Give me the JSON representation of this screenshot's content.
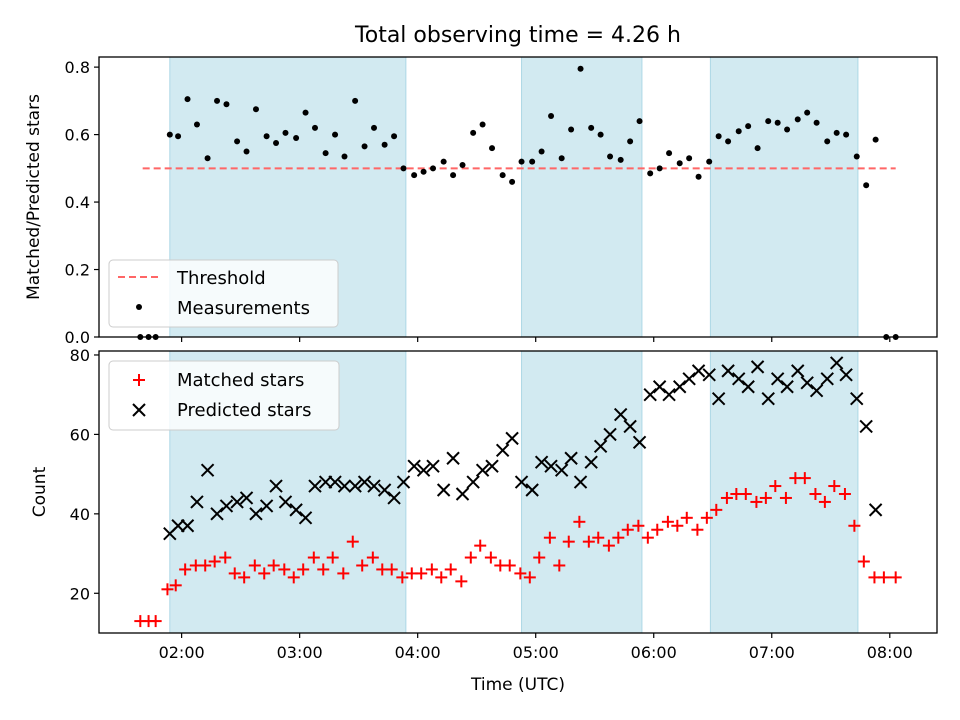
{
  "figure": {
    "title": "Total observing time = 4.26 h",
    "xlabel": "Time (UTC)",
    "x_ticks": [
      "02:00",
      "03:00",
      "04:00",
      "05:00",
      "06:00",
      "07:00",
      "08:00"
    ],
    "x_tick_hours": [
      2,
      3,
      4,
      5,
      6,
      7,
      8
    ],
    "xlim_hours": [
      1.3,
      8.4
    ],
    "observing_windows_hours": [
      [
        1.9,
        3.9
      ],
      [
        4.88,
        5.9
      ],
      [
        6.48,
        7.73
      ]
    ],
    "window_color": "#add8e6"
  },
  "chart_data": [
    {
      "type": "scatter",
      "ylabel": "Matched/Predicted stars",
      "ylim": [
        0,
        0.83
      ],
      "y_ticks": [
        "0.0",
        "0.2",
        "0.4",
        "0.6",
        "0.8"
      ],
      "y_tick_values": [
        0,
        0.2,
        0.4,
        0.6,
        0.8
      ],
      "legend_position": "lower-left",
      "threshold": {
        "name": "Threshold",
        "value": 0.5,
        "x_range_hours": [
          1.67,
          8.05
        ],
        "color": "#ff6666",
        "style": "dashed"
      },
      "series": [
        {
          "name": "Measurements",
          "color": "#000000",
          "marker": "dot",
          "x_hours": [
            1.65,
            1.72,
            1.78,
            1.9,
            1.97,
            2.05,
            2.13,
            2.22,
            2.3,
            2.38,
            2.47,
            2.55,
            2.63,
            2.72,
            2.8,
            2.88,
            2.97,
            3.05,
            3.13,
            3.22,
            3.3,
            3.38,
            3.47,
            3.55,
            3.63,
            3.72,
            3.8,
            3.88,
            3.97,
            4.05,
            4.13,
            4.22,
            4.3,
            4.38,
            4.47,
            4.55,
            4.63,
            4.72,
            4.8,
            4.88,
            4.97,
            5.05,
            5.13,
            5.22,
            5.3,
            5.38,
            5.47,
            5.55,
            5.63,
            5.72,
            5.8,
            5.88,
            5.97,
            6.05,
            6.13,
            6.22,
            6.3,
            6.38,
            6.47,
            6.55,
            6.63,
            6.72,
            6.8,
            6.88,
            6.97,
            7.05,
            7.13,
            7.22,
            7.3,
            7.38,
            7.47,
            7.55,
            7.63,
            7.72,
            7.8,
            7.88,
            7.97,
            8.05
          ],
          "values": [
            0.0,
            0.0,
            0.0,
            0.6,
            0.595,
            0.705,
            0.63,
            0.53,
            0.7,
            0.69,
            0.58,
            0.55,
            0.675,
            0.595,
            0.575,
            0.605,
            0.59,
            0.665,
            0.62,
            0.545,
            0.6,
            0.535,
            0.7,
            0.565,
            0.62,
            0.57,
            0.595,
            0.5,
            0.48,
            0.49,
            0.5,
            0.52,
            0.48,
            0.51,
            0.605,
            0.63,
            0.56,
            0.48,
            0.46,
            0.52,
            0.52,
            0.55,
            0.655,
            0.53,
            0.615,
            0.795,
            0.62,
            0.6,
            0.535,
            0.525,
            0.58,
            0.64,
            0.485,
            0.5,
            0.545,
            0.515,
            0.53,
            0.475,
            0.52,
            0.595,
            0.58,
            0.61,
            0.625,
            0.56,
            0.64,
            0.635,
            0.615,
            0.645,
            0.665,
            0.635,
            0.58,
            0.605,
            0.6,
            0.535,
            0.45,
            0.585,
            0.0,
            0.0
          ]
        }
      ]
    },
    {
      "type": "scatter",
      "ylabel": "Count",
      "ylim": [
        10,
        81
      ],
      "y_ticks": [
        "20",
        "40",
        "60",
        "80"
      ],
      "y_tick_values": [
        20,
        40,
        60,
        80
      ],
      "legend_position": "upper-left",
      "series": [
        {
          "name": "Matched stars",
          "color": "#ff0000",
          "marker": "plus",
          "x_hours": [
            1.65,
            1.72,
            1.78,
            1.88,
            1.95,
            2.03,
            2.12,
            2.2,
            2.28,
            2.37,
            2.45,
            2.53,
            2.62,
            2.7,
            2.78,
            2.87,
            2.95,
            3.03,
            3.12,
            3.2,
            3.28,
            3.37,
            3.45,
            3.53,
            3.62,
            3.7,
            3.78,
            3.87,
            3.95,
            4.03,
            4.12,
            4.2,
            4.28,
            4.37,
            4.45,
            4.53,
            4.62,
            4.7,
            4.78,
            4.87,
            4.95,
            5.03,
            5.12,
            5.2,
            5.28,
            5.37,
            5.45,
            5.53,
            5.62,
            5.7,
            5.78,
            5.87,
            5.95,
            6.03,
            6.12,
            6.2,
            6.28,
            6.37,
            6.45,
            6.53,
            6.62,
            6.7,
            6.78,
            6.87,
            6.95,
            7.03,
            7.12,
            7.2,
            7.28,
            7.37,
            7.45,
            7.53,
            7.62,
            7.7,
            7.78,
            7.87,
            7.95,
            8.05
          ],
          "values": [
            13,
            13,
            13,
            21,
            22,
            26,
            27,
            27,
            28,
            29,
            25,
            24,
            27,
            25,
            27,
            26,
            24,
            26,
            29,
            26,
            29,
            25,
            33,
            27,
            29,
            26,
            26,
            24,
            25,
            25,
            26,
            24,
            26,
            23,
            29,
            32,
            29,
            27,
            27,
            25,
            24,
            29,
            34,
            27,
            33,
            38,
            33,
            34,
            32,
            34,
            36,
            37,
            34,
            36,
            38,
            37,
            39,
            36,
            39,
            41,
            44,
            45,
            45,
            43,
            44,
            47,
            44,
            49,
            49,
            45,
            43,
            47,
            45,
            37,
            28,
            24,
            24,
            24
          ]
        },
        {
          "name": "Predicted stars",
          "color": "#000000",
          "marker": "x",
          "x_hours": [
            1.9,
            1.97,
            2.05,
            2.13,
            2.22,
            2.3,
            2.38,
            2.47,
            2.55,
            2.63,
            2.72,
            2.8,
            2.88,
            2.97,
            3.05,
            3.13,
            3.22,
            3.3,
            3.38,
            3.47,
            3.55,
            3.63,
            3.72,
            3.8,
            3.88,
            3.97,
            4.05,
            4.13,
            4.22,
            4.3,
            4.38,
            4.47,
            4.55,
            4.63,
            4.72,
            4.8,
            4.88,
            4.97,
            5.05,
            5.13,
            5.22,
            5.3,
            5.38,
            5.47,
            5.55,
            5.63,
            5.72,
            5.8,
            5.88,
            5.97,
            6.05,
            6.13,
            6.22,
            6.3,
            6.38,
            6.47,
            6.55,
            6.63,
            6.72,
            6.8,
            6.88,
            6.97,
            7.05,
            7.13,
            7.22,
            7.3,
            7.38,
            7.47,
            7.55,
            7.63,
            7.72,
            7.8,
            7.88
          ],
          "values": [
            35,
            37,
            37,
            43,
            51,
            40,
            42,
            43,
            44,
            40,
            42,
            47,
            43,
            41,
            39,
            47,
            48,
            48,
            47,
            47,
            48,
            47,
            46,
            44,
            48,
            52,
            51,
            52,
            46,
            54,
            45,
            48,
            51,
            52,
            56,
            59,
            48,
            46,
            53,
            52,
            51,
            54,
            48,
            53,
            57,
            60,
            65,
            62,
            58,
            70,
            72,
            70,
            72,
            74,
            76,
            75,
            69,
            76,
            74,
            72,
            77,
            69,
            74,
            72,
            76,
            73,
            71,
            74,
            78,
            75,
            69,
            62,
            41
          ]
        }
      ]
    }
  ]
}
